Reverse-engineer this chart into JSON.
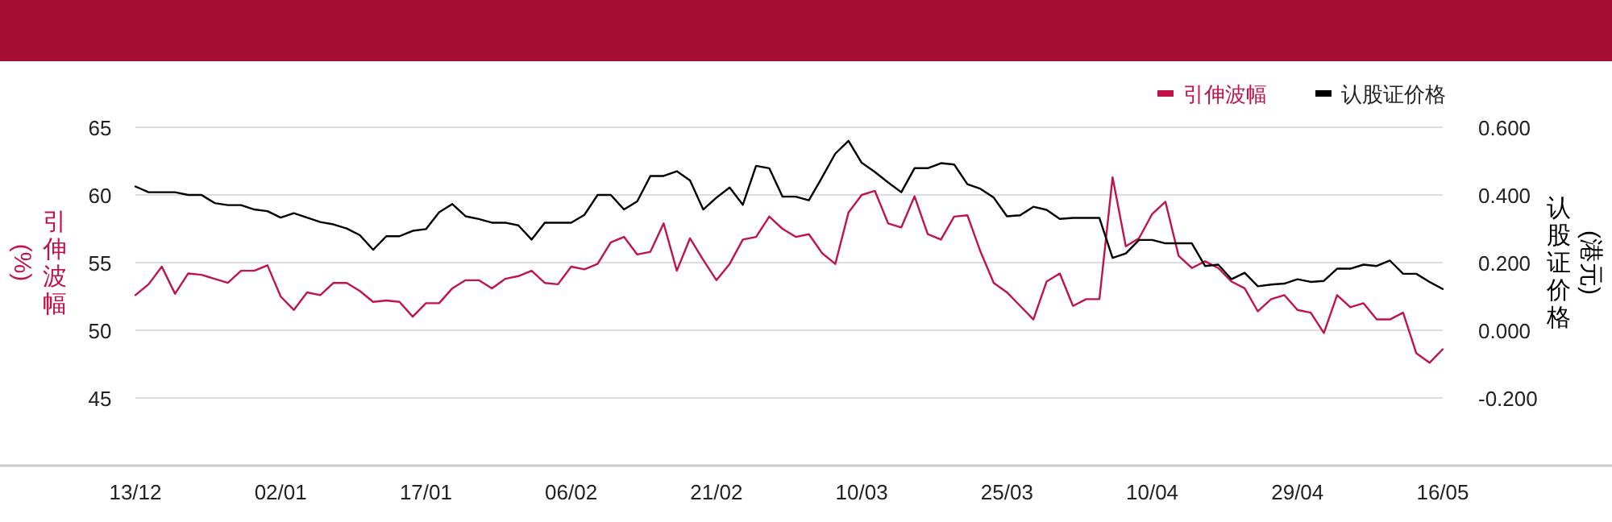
{
  "chart_data": {
    "type": "line",
    "ylabel": "引伸波幅(%)",
    "y2label": "认股证价格(港元)",
    "categories": [
      "13/12",
      null,
      null,
      null,
      null,
      null,
      null,
      null,
      null,
      null,
      null,
      "02/01",
      null,
      null,
      null,
      null,
      null,
      null,
      null,
      null,
      null,
      null,
      "17/01",
      null,
      null,
      null,
      null,
      null,
      null,
      null,
      null,
      null,
      null,
      "06/02",
      null,
      null,
      null,
      null,
      null,
      null,
      null,
      null,
      null,
      null,
      "21/02",
      null,
      null,
      null,
      null,
      null,
      null,
      null,
      null,
      null,
      null,
      "10/03",
      null,
      null,
      null,
      null,
      null,
      null,
      null,
      null,
      null,
      null,
      "25/03",
      null,
      null,
      null,
      null,
      null,
      null,
      null,
      null,
      null,
      null,
      "10/04",
      null,
      null,
      null,
      null,
      null,
      null,
      null,
      null,
      null,
      null,
      "29/04",
      null,
      null,
      null,
      null,
      null,
      null,
      null,
      null,
      null,
      null,
      "16/05"
    ],
    "series": [
      {
        "name": "引伸波幅",
        "color": "#c0134a",
        "values": [
          52.6,
          53.4,
          54.7,
          52.7,
          54.2,
          54.1,
          53.8,
          53.5,
          54.4,
          54.4,
          54.8,
          52.5,
          51.5,
          52.8,
          52.6,
          53.5,
          53.5,
          52.9,
          52.1,
          52.2,
          52.1,
          51.0,
          52.0,
          52.0,
          53.1,
          53.7,
          53.7,
          53.1,
          53.8,
          54.0,
          54.4,
          53.5,
          53.4,
          54.7,
          54.5,
          54.9,
          56.5,
          56.9,
          55.6,
          55.8,
          57.9,
          54.4,
          56.8,
          55.2,
          53.7,
          54.9,
          56.7,
          56.9,
          58.4,
          57.5,
          56.9,
          57.1,
          55.7,
          54.9,
          58.7,
          60.0,
          60.3,
          57.9,
          57.6,
          59.9,
          57.1,
          56.7,
          58.4,
          58.5,
          55.8,
          53.5,
          52.8,
          51.8,
          50.8,
          53.6,
          54.2,
          51.8,
          52.3,
          52.3,
          61.3,
          56.2,
          56.8,
          58.6,
          59.5,
          55.5,
          54.6,
          55.1,
          54.6,
          53.6,
          53.1,
          51.4,
          52.3,
          52.6,
          51.5,
          51.3,
          49.8,
          52.6,
          51.7,
          52.0,
          50.8,
          50.8,
          51.3,
          48.3,
          47.6,
          48.6
        ]
      },
      {
        "name": "认股证价格",
        "color": "#000000",
        "axis": "y2",
        "values": [
          0.425,
          0.408,
          0.408,
          0.408,
          0.4,
          0.4,
          0.376,
          0.37,
          0.37,
          0.357,
          0.352,
          0.333,
          0.346,
          0.333,
          0.32,
          0.313,
          0.301,
          0.281,
          0.238,
          0.278,
          0.278,
          0.294,
          0.299,
          0.349,
          0.373,
          0.337,
          0.329,
          0.318,
          0.318,
          0.31,
          0.268,
          0.318,
          0.318,
          0.318,
          0.341,
          0.4,
          0.4,
          0.357,
          0.381,
          0.456,
          0.456,
          0.47,
          0.443,
          0.357,
          0.392,
          0.422,
          0.371,
          0.486,
          0.479,
          0.395,
          0.395,
          0.384,
          0.452,
          0.522,
          0.56,
          0.495,
          0.468,
          0.437,
          0.408,
          0.479,
          0.479,
          0.494,
          0.49,
          0.432,
          0.418,
          0.392,
          0.337,
          0.34,
          0.365,
          0.356,
          0.329,
          0.332,
          0.332,
          0.332,
          0.214,
          0.227,
          0.267,
          0.267,
          0.257,
          0.257,
          0.257,
          0.19,
          0.194,
          0.151,
          0.17,
          0.13,
          0.135,
          0.138,
          0.151,
          0.143,
          0.146,
          0.182,
          0.182,
          0.194,
          0.19,
          0.206,
          0.167,
          0.167,
          0.143,
          0.122
        ]
      }
    ],
    "ylim": [
      40,
      65
    ],
    "yticks": [
      45,
      50,
      55,
      60,
      65
    ],
    "y2lim": [
      -0.4,
      0.6
    ],
    "y2ticks": [
      {
        "value": -0.2,
        "label": "-0.200"
      },
      {
        "value": 0,
        "label": "0.000"
      },
      {
        "value": 0.2,
        "label": "0.200"
      },
      {
        "value": 0.4,
        "label": "0.400"
      },
      {
        "value": 0.6,
        "label": "0.600"
      }
    ],
    "grid": "y",
    "legend": "top right",
    "marker": "none",
    "line_style": "solid"
  }
}
